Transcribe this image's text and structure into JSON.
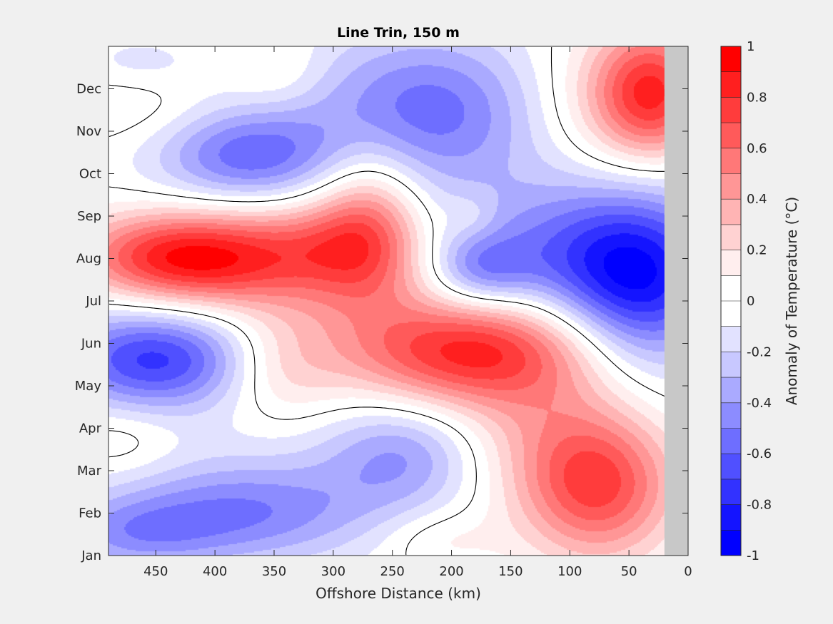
{
  "chart_data": {
    "type": "heatmap",
    "title": "Line Trin, 150 m",
    "xlabel": "Offshore Distance (km)",
    "ylabel": "",
    "xlim": [
      490,
      0
    ],
    "x_reversed": true,
    "x_ticks": [
      450,
      400,
      350,
      300,
      250,
      200,
      150,
      100,
      50,
      0
    ],
    "y_ticks": [
      "Jan",
      "Feb",
      "Mar",
      "Apr",
      "May",
      "Jun",
      "Jul",
      "Aug",
      "Sep",
      "Oct",
      "Nov",
      "Dec"
    ],
    "no_data_from_km": 20,
    "no_data_color": "#c8c8c8",
    "colorbar": {
      "label": "Anomaly of Temperature (°C)",
      "range": [
        -1,
        1
      ],
      "tick_values": [
        1,
        0.8,
        0.6,
        0.4,
        0.2,
        0,
        -0.2,
        -0.4,
        -0.6,
        -0.8,
        -1
      ],
      "tick_labels": [
        "1",
        "0.8",
        "0.6",
        "0.4",
        "0.2",
        "0",
        "-0.2",
        "-0.4",
        "-0.6",
        "-0.8",
        "-1"
      ],
      "levels": [
        "#ff0000",
        "#ff1f1f",
        "#ff3c3c",
        "#ff5a5a",
        "#ff7878",
        "#ff9696",
        "#ffb4b4",
        "#ffd2d2",
        "#ffeeee",
        "#ffffff",
        "#ffffff",
        "#e2e2ff",
        "#c8c8ff",
        "#aaaaff",
        "#8c8cff",
        "#6e6eff",
        "#5050ff",
        "#3232ff",
        "#1414ff",
        "#0000ff"
      ]
    },
    "features": [
      {
        "label": "Aug warm core",
        "x_km": 430,
        "month": 7.0,
        "value": 0.8,
        "rx_km": 62,
        "ry_months": 0.75
      },
      {
        "label": "Aug warm belt",
        "x_km": 340,
        "month": 6.9,
        "value": 0.35,
        "rx_km": 80,
        "ry_months": 1.1
      },
      {
        "label": "Sep warm tongue",
        "x_km": 270,
        "month": 7.9,
        "value": 0.45,
        "rx_km": 32,
        "ry_months": 1.4
      },
      {
        "label": "Sep warm ridge",
        "x_km": 300,
        "month": 7.3,
        "value": 0.25,
        "rx_km": 45,
        "ry_months": 0.8
      },
      {
        "label": "May warm core",
        "x_km": 195,
        "month": 4.7,
        "value": 0.6,
        "rx_km": 75,
        "ry_months": 0.9
      },
      {
        "label": "Jun warm band",
        "x_km": 150,
        "month": 5.2,
        "value": 0.3,
        "rx_km": 80,
        "ry_months": 0.9
      },
      {
        "label": "Feb warm core",
        "x_km": 75,
        "month": 1.6,
        "value": 0.65,
        "rx_km": 45,
        "ry_months": 1.2
      },
      {
        "label": "Mar warm band",
        "x_km": 125,
        "month": 2.8,
        "value": 0.3,
        "rx_km": 60,
        "ry_months": 1.4
      },
      {
        "label": "Dec warm core",
        "x_km": 30,
        "month": 10.9,
        "value": 0.75,
        "rx_km": 35,
        "ry_months": 1.1
      },
      {
        "label": "Dec warm band",
        "x_km": 75,
        "month": 10.6,
        "value": 0.3,
        "rx_km": 55,
        "ry_months": 1.3
      },
      {
        "label": "May warm patch",
        "x_km": 345,
        "month": 4.4,
        "value": 0.25,
        "rx_km": 35,
        "ry_months": 0.9
      },
      {
        "label": "Dec warm patch",
        "x_km": 345,
        "month": 11.3,
        "value": 0.12,
        "rx_km": 28,
        "ry_months": 0.6
      },
      {
        "label": "Nov warm patch",
        "x_km": 470,
        "month": 10.6,
        "value": 0.12,
        "rx_km": 45,
        "ry_months": 0.7
      },
      {
        "label": "Mar warm patch",
        "x_km": 480,
        "month": 2.7,
        "value": 0.15,
        "rx_km": 35,
        "ry_months": 0.6
      },
      {
        "label": "Sep warm patch",
        "x_km": 183,
        "month": 8.0,
        "value": 0.12,
        "rx_km": 16,
        "ry_months": 0.4
      },
      {
        "label": "Jan warm patch",
        "x_km": 210,
        "month": 0.4,
        "value": 0.15,
        "rx_km": 35,
        "ry_months": 0.5
      },
      {
        "label": "Jun cool core",
        "x_km": 450,
        "month": 4.6,
        "value": -0.55,
        "rx_km": 55,
        "ry_months": 0.8
      },
      {
        "label": "Jun cool band",
        "x_km": 450,
        "month": 4.9,
        "value": -0.2,
        "rx_km": 80,
        "ry_months": 1.1
      },
      {
        "label": "Jul cool core",
        "x_km": 40,
        "month": 6.4,
        "value": -0.75,
        "rx_km": 50,
        "ry_months": 1.5
      },
      {
        "label": "Aug cool band",
        "x_km": 90,
        "month": 6.9,
        "value": -0.3,
        "rx_km": 70,
        "ry_months": 1.3
      },
      {
        "label": "Oct cool core",
        "x_km": 375,
        "month": 9.4,
        "value": -0.4,
        "rx_km": 50,
        "ry_months": 0.8
      },
      {
        "label": "Oct cool band",
        "x_km": 360,
        "month": 9.3,
        "value": -0.15,
        "rx_km": 85,
        "ry_months": 0.9
      },
      {
        "label": "Nov cool core",
        "x_km": 230,
        "month": 10.6,
        "value": -0.4,
        "rx_km": 70,
        "ry_months": 1.2
      },
      {
        "label": "Nov cool band",
        "x_km": 160,
        "month": 10.2,
        "value": -0.2,
        "rx_km": 110,
        "ry_months": 1.6
      },
      {
        "label": "Aug cool patch",
        "x_km": 175,
        "month": 6.7,
        "value": -0.35,
        "rx_km": 30,
        "ry_months": 0.6
      },
      {
        "label": "Aug cool band east",
        "x_km": 150,
        "month": 7.3,
        "value": -0.15,
        "rx_km": 60,
        "ry_months": 1.1
      },
      {
        "label": "Feb cool core",
        "x_km": 375,
        "month": 1.0,
        "value": -0.35,
        "rx_km": 70,
        "ry_months": 0.8
      },
      {
        "label": "Jan cool core",
        "x_km": 470,
        "month": 0.5,
        "value": -0.3,
        "rx_km": 50,
        "ry_months": 0.6
      },
      {
        "label": "Feb cool band",
        "x_km": 390,
        "month": 1.3,
        "value": -0.15,
        "rx_km": 120,
        "ry_months": 1.2
      },
      {
        "label": "Mar cool core",
        "x_km": 240,
        "month": 2.4,
        "value": -0.28,
        "rx_km": 45,
        "ry_months": 0.9
      },
      {
        "label": "Mar cool band",
        "x_km": 230,
        "month": 2.4,
        "value": -0.12,
        "rx_km": 70,
        "ry_months": 1.2
      },
      {
        "label": "Dec cool patch",
        "x_km": 465,
        "month": 11.6,
        "value": -0.15,
        "rx_km": 40,
        "ry_months": 0.5
      }
    ]
  }
}
